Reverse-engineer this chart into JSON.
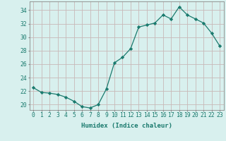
{
  "x": [
    0,
    1,
    2,
    3,
    4,
    5,
    6,
    7,
    8,
    9,
    10,
    11,
    12,
    13,
    14,
    15,
    16,
    17,
    18,
    19,
    20,
    21,
    22,
    23
  ],
  "y": [
    22.5,
    21.8,
    21.7,
    21.5,
    21.1,
    20.5,
    19.7,
    19.5,
    20.0,
    22.3,
    26.2,
    27.0,
    28.3,
    31.5,
    31.8,
    32.1,
    33.3,
    32.7,
    34.5,
    33.3,
    32.7,
    32.1,
    30.6,
    28.7
  ],
  "xlabel": "Humidex (Indice chaleur)",
  "xlim": [
    -0.5,
    23.5
  ],
  "ylim": [
    19.2,
    35.3
  ],
  "yticks": [
    20,
    22,
    24,
    26,
    28,
    30,
    32,
    34
  ],
  "xticks": [
    0,
    1,
    2,
    3,
    4,
    5,
    6,
    7,
    8,
    9,
    10,
    11,
    12,
    13,
    14,
    15,
    16,
    17,
    18,
    19,
    20,
    21,
    22,
    23
  ],
  "line_color": "#1a7a6e",
  "marker": "D",
  "marker_size": 2.2,
  "bg_color": "#d8f0ee",
  "plot_bg_color": "#d8f0ee",
  "grid_color": "#c8b8b8",
  "spine_color": "#888888",
  "tick_label_color": "#1a7a6e",
  "xlabel_color": "#1a7a6e",
  "tick_fontsize": 5.8,
  "xlabel_fontsize": 6.5
}
